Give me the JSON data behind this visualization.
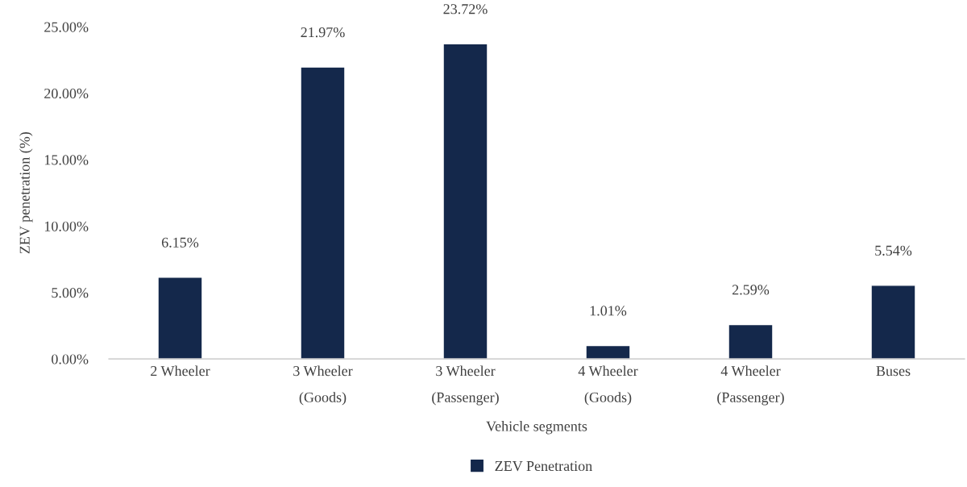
{
  "chart_data": {
    "type": "bar",
    "xlabel": "Vehicle segments",
    "ylabel": "ZEV penetration (%)",
    "categories": [
      "2 Wheeler",
      "3 Wheeler\n(Goods)",
      "3 Wheeler\n(Passenger)",
      "4 Wheeler\n(Goods)",
      "4 Wheeler\n(Passenger)",
      "Buses"
    ],
    "series": [
      {
        "name": "ZEV Penetration",
        "color": "#14284b",
        "values": [
          6.15,
          21.97,
          23.72,
          1.01,
          2.59,
          5.54
        ],
        "value_labels": [
          "6.15%",
          "21.97%",
          "23.72%",
          "1.01%",
          "2.59%",
          "5.54%"
        ]
      }
    ],
    "ylim": [
      0,
      25
    ],
    "yticks": [
      {
        "value": 0,
        "label": "0.00%"
      },
      {
        "value": 5,
        "label": "5.00%"
      },
      {
        "value": 10,
        "label": "10.00%"
      },
      {
        "value": 15,
        "label": "15.00%"
      },
      {
        "value": 20,
        "label": "20.00%"
      },
      {
        "value": 25,
        "label": "25.00%"
      }
    ],
    "grid": false,
    "legend": "bottom"
  }
}
